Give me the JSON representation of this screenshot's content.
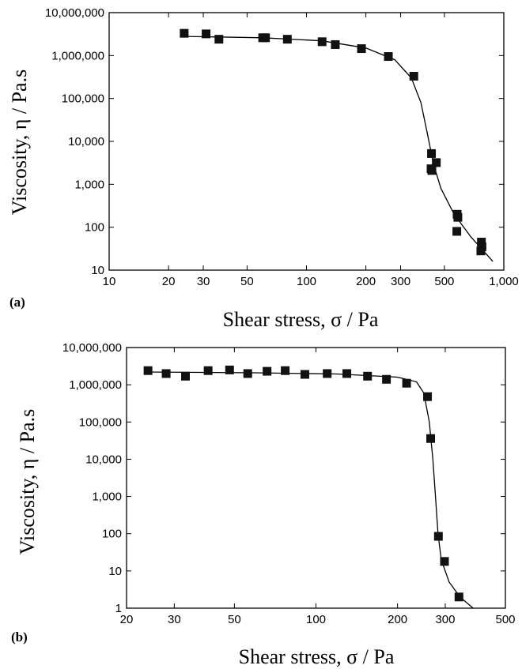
{
  "chart_data": [
    {
      "panel": "(a)",
      "type": "scatter",
      "x_scale": "log",
      "y_scale": "log",
      "xlabel": "Shear stress, σ / Pa",
      "ylabel": "Viscosity, η / Pa.s",
      "xlim": [
        10,
        1000
      ],
      "ylim": [
        10,
        10000000
      ],
      "x_ticks": [
        {
          "value": 10,
          "label": "10"
        },
        {
          "value": 20,
          "label": "20"
        },
        {
          "value": 30,
          "label": "30"
        },
        {
          "value": 50,
          "label": "50"
        },
        {
          "value": 100,
          "label": "100"
        },
        {
          "value": 200,
          "label": "200"
        },
        {
          "value": 300,
          "label": "300"
        },
        {
          "value": 500,
          "label": "500"
        },
        {
          "value": 1000,
          "label": "1,000"
        }
      ],
      "y_ticks": [
        {
          "value": 10,
          "label": "10"
        },
        {
          "value": 100,
          "label": "100"
        },
        {
          "value": 1000,
          "label": "1,000"
        },
        {
          "value": 10000,
          "label": "10,000"
        },
        {
          "value": 100000,
          "label": "100,000"
        },
        {
          "value": 1000000,
          "label": "1,000,000"
        },
        {
          "value": 10000000,
          "label": "10,000,000"
        }
      ],
      "points": [
        {
          "x": 24,
          "y": 3300000
        },
        {
          "x": 31,
          "y": 3200000
        },
        {
          "x": 36,
          "y": 2400000
        },
        {
          "x": 60,
          "y": 2600000
        },
        {
          "x": 62,
          "y": 2600000
        },
        {
          "x": 80,
          "y": 2400000
        },
        {
          "x": 120,
          "y": 2100000
        },
        {
          "x": 140,
          "y": 1800000
        },
        {
          "x": 190,
          "y": 1450000
        },
        {
          "x": 260,
          "y": 950000
        },
        {
          "x": 350,
          "y": 330000
        },
        {
          "x": 430,
          "y": 5200
        },
        {
          "x": 455,
          "y": 3200
        },
        {
          "x": 428,
          "y": 2300
        },
        {
          "x": 432,
          "y": 2100
        },
        {
          "x": 580,
          "y": 200
        },
        {
          "x": 585,
          "y": 170
        },
        {
          "x": 578,
          "y": 80
        },
        {
          "x": 770,
          "y": 45
        },
        {
          "x": 775,
          "y": 35
        },
        {
          "x": 765,
          "y": 28
        }
      ],
      "fit_line": [
        {
          "x": 23,
          "y": 2800000
        },
        {
          "x": 60,
          "y": 2600000
        },
        {
          "x": 120,
          "y": 2200000
        },
        {
          "x": 200,
          "y": 1500000
        },
        {
          "x": 280,
          "y": 800000
        },
        {
          "x": 340,
          "y": 300000
        },
        {
          "x": 380,
          "y": 80000
        },
        {
          "x": 410,
          "y": 15000
        },
        {
          "x": 440,
          "y": 3000
        },
        {
          "x": 480,
          "y": 800
        },
        {
          "x": 560,
          "y": 200
        },
        {
          "x": 680,
          "y": 60
        },
        {
          "x": 880,
          "y": 16
        }
      ]
    },
    {
      "panel": "(b)",
      "type": "scatter",
      "x_scale": "log",
      "y_scale": "log",
      "xlabel": "Shear stress,  σ / Pa",
      "ylabel": "Viscosity, η / Pa.s",
      "xlim": [
        20,
        500
      ],
      "ylim": [
        1,
        10000000
      ],
      "x_ticks": [
        {
          "value": 20,
          "label": "20"
        },
        {
          "value": 30,
          "label": "30"
        },
        {
          "value": 50,
          "label": "50"
        },
        {
          "value": 100,
          "label": "100"
        },
        {
          "value": 200,
          "label": "200"
        },
        {
          "value": 300,
          "label": "300"
        },
        {
          "value": 500,
          "label": "500"
        }
      ],
      "y_ticks": [
        {
          "value": 1,
          "label": "1"
        },
        {
          "value": 10,
          "label": "10"
        },
        {
          "value": 100,
          "label": "100"
        },
        {
          "value": 1000,
          "label": "1,000"
        },
        {
          "value": 10000,
          "label": "10,000"
        },
        {
          "value": 100000,
          "label": "100,000"
        },
        {
          "value": 1000000,
          "label": "1,000,000"
        },
        {
          "value": 10000000,
          "label": "10,000,000"
        }
      ],
      "points": [
        {
          "x": 24,
          "y": 2400000
        },
        {
          "x": 28,
          "y": 2000000
        },
        {
          "x": 33,
          "y": 1700000
        },
        {
          "x": 40,
          "y": 2400000
        },
        {
          "x": 48,
          "y": 2500000
        },
        {
          "x": 56,
          "y": 2000000
        },
        {
          "x": 66,
          "y": 2300000
        },
        {
          "x": 77,
          "y": 2400000
        },
        {
          "x": 91,
          "y": 1900000
        },
        {
          "x": 110,
          "y": 2000000
        },
        {
          "x": 130,
          "y": 2000000
        },
        {
          "x": 155,
          "y": 1700000
        },
        {
          "x": 182,
          "y": 1400000
        },
        {
          "x": 216,
          "y": 1100000
        },
        {
          "x": 258,
          "y": 480000
        },
        {
          "x": 265,
          "y": 36000
        },
        {
          "x": 283,
          "y": 85
        },
        {
          "x": 298,
          "y": 18
        },
        {
          "x": 337,
          "y": 2
        }
      ],
      "fit_line": [
        {
          "x": 24,
          "y": 2200000
        },
        {
          "x": 60,
          "y": 2100000
        },
        {
          "x": 120,
          "y": 1950000
        },
        {
          "x": 200,
          "y": 1600000
        },
        {
          "x": 235,
          "y": 1200000
        },
        {
          "x": 250,
          "y": 600000
        },
        {
          "x": 262,
          "y": 100000
        },
        {
          "x": 270,
          "y": 10000
        },
        {
          "x": 276,
          "y": 1000
        },
        {
          "x": 282,
          "y": 100
        },
        {
          "x": 290,
          "y": 20
        },
        {
          "x": 310,
          "y": 5
        },
        {
          "x": 340,
          "y": 2
        },
        {
          "x": 380,
          "y": 1
        }
      ]
    }
  ]
}
